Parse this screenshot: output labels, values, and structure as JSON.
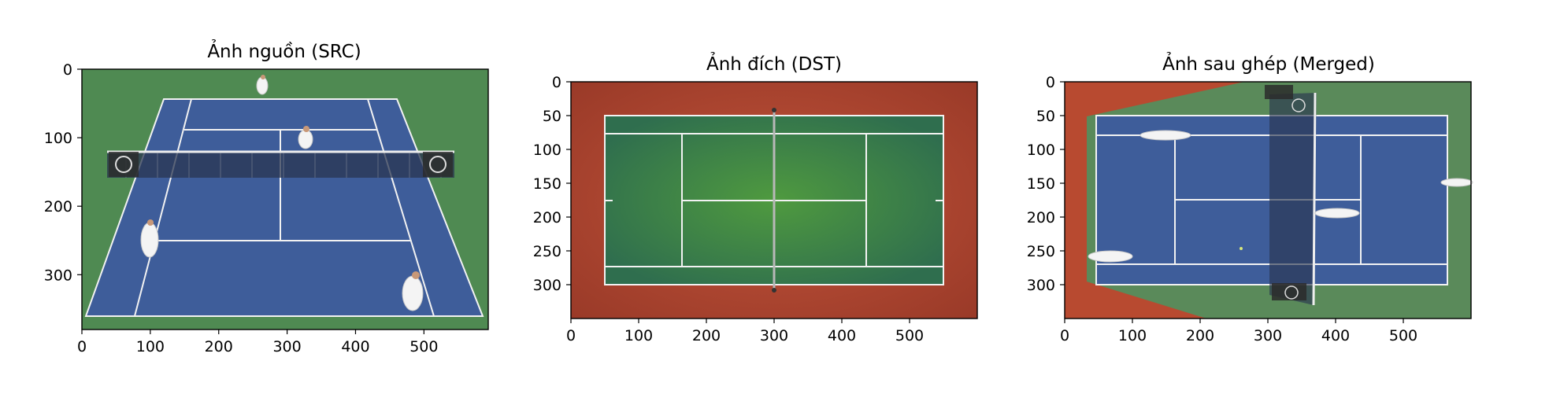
{
  "chart_data": [
    {
      "type": "image",
      "title": "Ảnh nguồn (SRC)",
      "xlabel": "",
      "ylabel": "",
      "xlim": [
        0,
        594
      ],
      "ylim": [
        380,
        0
      ],
      "xticks": [
        0,
        100,
        200,
        300,
        400,
        500
      ],
      "yticks": [
        0,
        100,
        200,
        300
      ],
      "image_description": "Broadcast view of a doubles tennis match on a blue hard court with green surrounds; net with logo panels; four players.",
      "colors": {
        "court": "#3e5d9a",
        "surround": "#4f8a52",
        "lines": "#f2f2f2"
      }
    },
    {
      "type": "image",
      "title": "Ảnh đích (DST)",
      "xlabel": "",
      "ylabel": "",
      "xlim": [
        0,
        600
      ],
      "ylim": [
        350,
        0
      ],
      "xticks": [
        0,
        100,
        200,
        300,
        400,
        500
      ],
      "yticks": [
        0,
        50,
        100,
        150,
        200,
        250,
        300
      ],
      "image_description": "Top-down diagram of a green tennis court with white lines inside a red-orange surround; net drawn vertically at x=300.",
      "colors": {
        "court": "#3f8a3d",
        "surround": "#b84a30",
        "lines": "#f2f2f2"
      }
    },
    {
      "type": "image",
      "title": "Ảnh sau ghép (Merged)",
      "xlabel": "",
      "ylabel": "",
      "xlim": [
        0,
        600
      ],
      "ylim": [
        350,
        0
      ],
      "xticks": [
        0,
        100,
        200,
        300,
        400,
        500
      ],
      "yticks": [
        0,
        50,
        100,
        150,
        200,
        250,
        300
      ],
      "image_description": "Source image warped into the top-down court: blue court with stretched players, warped net near x=300, trapezoid of green surround, red corners.",
      "colors": {
        "court": "#3e5d9a",
        "surround": "#5a8a5a",
        "corner": "#b84a30",
        "lines": "#f2f2f2"
      }
    }
  ]
}
